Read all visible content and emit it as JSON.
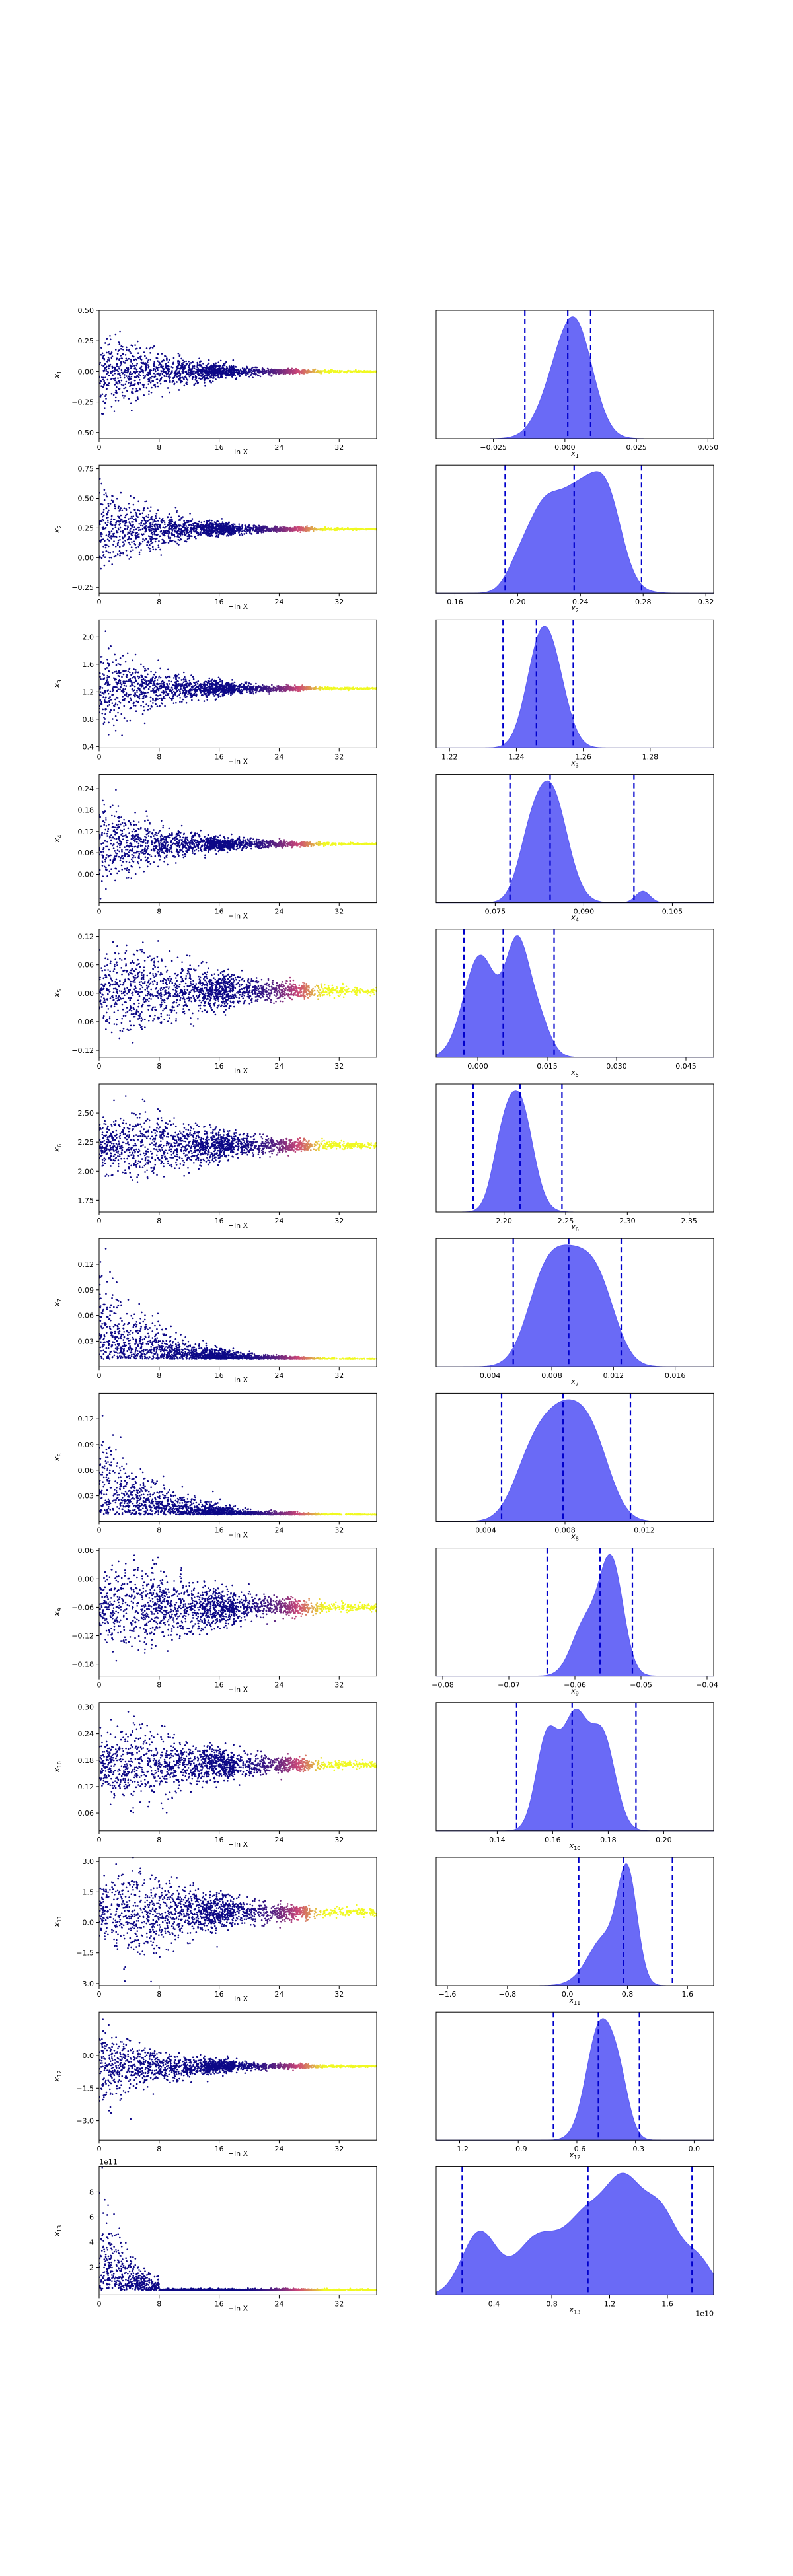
{
  "figure": {
    "background": "#ffffff"
  },
  "colors": {
    "hist_fill": "#5a5af5",
    "quantile_line": "#0000cc",
    "scatter_low": "#0d0887",
    "scatter_mid": "#cc4778",
    "scatter_high": "#f0f921"
  },
  "chart_data": [
    {
      "type": "scatter",
      "param": "x1",
      "xlabel": "−ln X",
      "ylabel_base": "x",
      "ylabel_sub": "1",
      "xlim": [
        0,
        37
      ],
      "xticks": [
        0,
        8,
        16,
        24,
        32
      ],
      "ylim": [
        -0.55,
        0.5
      ],
      "yticks": [
        -0.5,
        -0.25,
        0,
        0.25,
        0.5
      ],
      "ytick_labels": [
        "−0.50",
        "−0.25",
        "0.00",
        "0.25",
        "0.50"
      ],
      "center": 0.0,
      "spread": 0.18,
      "shape": "decay",
      "seed": 11
    },
    {
      "type": "area",
      "param": "x1",
      "xlabel_base": "x",
      "xlabel_sub": "1",
      "xlim": [
        -0.045,
        0.052
      ],
      "xticks": [
        -0.025,
        0,
        0.025,
        0.05
      ],
      "xtick_labels": [
        "−0.025",
        "0.000",
        "0.025",
        "0.050"
      ],
      "quantiles": [
        -0.014,
        0.001,
        0.009
      ],
      "density_peaks": [
        [
          0.004,
          0.006,
          1.0
        ],
        [
          -0.004,
          0.006,
          0.35
        ]
      ]
    },
    {
      "type": "scatter",
      "param": "x2",
      "xlabel": "−ln X",
      "ylabel_base": "x",
      "ylabel_sub": "2",
      "xlim": [
        0,
        37
      ],
      "xticks": [
        0,
        8,
        16,
        24,
        32
      ],
      "ylim": [
        -0.3,
        0.78
      ],
      "yticks": [
        -0.25,
        0,
        0.25,
        0.5,
        0.75
      ],
      "ytick_labels": [
        "−0.25",
        "0.00",
        "0.25",
        "0.50",
        "0.75"
      ],
      "center": 0.24,
      "spread": 0.17,
      "shape": "decay",
      "seed": 22
    },
    {
      "type": "area",
      "param": "x2",
      "xlabel_base": "x",
      "xlabel_sub": "2",
      "xlim": [
        0.148,
        0.325
      ],
      "xticks": [
        0.16,
        0.2,
        0.24,
        0.28,
        0.32
      ],
      "xtick_labels": [
        "0.16",
        "0.20",
        "0.24",
        "0.28",
        "0.32"
      ],
      "quantiles": [
        0.192,
        0.236,
        0.279
      ],
      "density_peaks": [
        [
          0.24,
          0.016,
          1.0
        ],
        [
          0.215,
          0.01,
          0.55
        ],
        [
          0.258,
          0.009,
          0.5
        ],
        [
          0.2,
          0.008,
          0.2
        ]
      ]
    },
    {
      "type": "scatter",
      "param": "x3",
      "xlabel": "−ln X",
      "ylabel_base": "x",
      "ylabel_sub": "3",
      "xlim": [
        0,
        37
      ],
      "xticks": [
        0,
        8,
        16,
        24,
        32
      ],
      "ylim": [
        0.38,
        2.25
      ],
      "yticks": [
        0.4,
        0.8,
        1.2,
        1.6,
        2.0
      ],
      "ytick_labels": [
        "0.4",
        "0.8",
        "1.2",
        "1.6",
        "2.0"
      ],
      "center": 1.25,
      "spread": 0.32,
      "shape": "decay",
      "seed": 33
    },
    {
      "type": "area",
      "param": "x3",
      "xlabel_base": "x",
      "xlabel_sub": "3",
      "xlim": [
        1.216,
        1.299
      ],
      "xticks": [
        1.22,
        1.24,
        1.26,
        1.28
      ],
      "xtick_labels": [
        "1.22",
        "1.24",
        "1.26",
        "1.28"
      ],
      "quantiles": [
        1.236,
        1.246,
        1.257
      ],
      "density_peaks": [
        [
          1.247,
          0.0042,
          1.0
        ],
        [
          1.252,
          0.004,
          0.5
        ]
      ]
    },
    {
      "type": "scatter",
      "param": "x4",
      "xlabel": "−ln X",
      "ylabel_base": "x",
      "ylabel_sub": "4",
      "xlim": [
        0,
        37
      ],
      "xticks": [
        0,
        8,
        16,
        24,
        32
      ],
      "ylim": [
        -0.08,
        0.28
      ],
      "yticks": [
        0,
        0.06,
        0.12,
        0.18,
        0.24
      ],
      "ytick_labels": [
        "0.00",
        "0.06",
        "0.12",
        "0.18",
        "0.24"
      ],
      "center": 0.085,
      "spread": 0.06,
      "shape": "decay",
      "seed": 44
    },
    {
      "type": "area",
      "param": "x4",
      "xlabel_base": "x",
      "xlabel_sub": "4",
      "xlim": [
        0.065,
        0.112
      ],
      "xticks": [
        0.075,
        0.09,
        0.105
      ],
      "xtick_labels": [
        "0.075",
        "0.090",
        "0.105"
      ],
      "quantiles": [
        0.0775,
        0.0843,
        0.0985
      ],
      "density_peaks": [
        [
          0.0843,
          0.0028,
          1.0
        ],
        [
          0.0805,
          0.002,
          0.3
        ],
        [
          0.1,
          0.0012,
          0.1
        ]
      ]
    },
    {
      "type": "scatter",
      "param": "x5",
      "xlabel": "−ln X",
      "ylabel_base": "x",
      "ylabel_sub": "5",
      "xlim": [
        0,
        37
      ],
      "xticks": [
        0,
        8,
        16,
        24,
        32
      ],
      "ylim": [
        -0.135,
        0.135
      ],
      "yticks": [
        -0.12,
        -0.06,
        0,
        0.06,
        0.12
      ],
      "ytick_labels": [
        "−0.12",
        "−0.06",
        "0.00",
        "0.06",
        "0.12"
      ],
      "center": 0.005,
      "spread": 0.05,
      "shape": "hump",
      "seed": 55
    },
    {
      "type": "area",
      "param": "x5",
      "xlabel_base": "x",
      "xlabel_sub": "5",
      "xlim": [
        -0.009,
        0.051
      ],
      "xticks": [
        0,
        0.015,
        0.03,
        0.045
      ],
      "xtick_labels": [
        "0.000",
        "0.015",
        "0.030",
        "0.045"
      ],
      "quantiles": [
        -0.003,
        0.0055,
        0.0165
      ],
      "density_peaks": [
        [
          0.0005,
          0.0035,
          0.95
        ],
        [
          0.0085,
          0.0025,
          1.0
        ],
        [
          0.013,
          0.0025,
          0.35
        ]
      ]
    },
    {
      "type": "scatter",
      "param": "x6",
      "xlabel": "−ln X",
      "ylabel_base": "x",
      "ylabel_sub": "6",
      "xlim": [
        0,
        37
      ],
      "xticks": [
        0,
        8,
        16,
        24,
        32
      ],
      "ylim": [
        1.65,
        2.75
      ],
      "yticks": [
        1.75,
        2.0,
        2.25,
        2.5
      ],
      "ytick_labels": [
        "1.75",
        "2.00",
        "2.25",
        "2.50"
      ],
      "center": 2.22,
      "spread": 0.16,
      "shape": "hump",
      "seed": 66
    },
    {
      "type": "area",
      "param": "x6",
      "xlabel_base": "x",
      "xlabel_sub": "6",
      "xlim": [
        2.145,
        2.37
      ],
      "xticks": [
        2.2,
        2.25,
        2.3,
        2.35
      ],
      "xtick_labels": [
        "2.20",
        "2.25",
        "2.30",
        "2.35"
      ],
      "quantiles": [
        2.175,
        2.213,
        2.247
      ],
      "density_peaks": [
        [
          2.212,
          0.011,
          1.0
        ],
        [
          2.197,
          0.008,
          0.35
        ]
      ]
    },
    {
      "type": "scatter",
      "param": "x7",
      "xlabel": "−ln X",
      "ylabel_base": "x",
      "ylabel_sub": "7",
      "xlim": [
        0,
        37
      ],
      "xticks": [
        0,
        8,
        16,
        24,
        32
      ],
      "ylim": [
        0,
        0.15
      ],
      "yticks": [
        0.03,
        0.06,
        0.09,
        0.12
      ],
      "ytick_labels": [
        "0.03",
        "0.06",
        "0.09",
        "0.12"
      ],
      "center": 0.009,
      "spread": 0.05,
      "shape": "right",
      "seed": 77
    },
    {
      "type": "area",
      "param": "x7",
      "xlabel_base": "x",
      "xlabel_sub": "7",
      "xlim": [
        0.0005,
        0.0185
      ],
      "xticks": [
        0.004,
        0.008,
        0.012,
        0.016
      ],
      "xtick_labels": [
        "0.004",
        "0.008",
        "0.012",
        "0.016"
      ],
      "quantiles": [
        0.0055,
        0.0091,
        0.0125
      ],
      "density_peaks": [
        [
          0.0092,
          0.0016,
          1.0
        ],
        [
          0.0073,
          0.0011,
          0.45
        ],
        [
          0.0112,
          0.0011,
          0.45
        ]
      ]
    },
    {
      "type": "scatter",
      "param": "x8",
      "xlabel": "−ln X",
      "ylabel_base": "x",
      "ylabel_sub": "8",
      "xlim": [
        0,
        37
      ],
      "xticks": [
        0,
        8,
        16,
        24,
        32
      ],
      "ylim": [
        0,
        0.15
      ],
      "yticks": [
        0.03,
        0.06,
        0.09,
        0.12
      ],
      "ytick_labels": [
        "0.03",
        "0.06",
        "0.09",
        "0.12"
      ],
      "center": 0.008,
      "spread": 0.05,
      "shape": "right",
      "seed": 88
    },
    {
      "type": "area",
      "param": "x8",
      "xlabel_base": "x",
      "xlabel_sub": "8",
      "xlim": [
        0.0015,
        0.0155
      ],
      "xticks": [
        0.004,
        0.008,
        0.012
      ],
      "xtick_labels": [
        "0.004",
        "0.008",
        "0.012"
      ],
      "quantiles": [
        0.0048,
        0.0079,
        0.0113
      ],
      "density_peaks": [
        [
          0.0079,
          0.0012,
          1.0
        ],
        [
          0.0062,
          0.0009,
          0.4
        ],
        [
          0.0095,
          0.0009,
          0.5
        ]
      ]
    },
    {
      "type": "scatter",
      "param": "x9",
      "xlabel": "−ln X",
      "ylabel_base": "x",
      "ylabel_sub": "9",
      "xlim": [
        0,
        37
      ],
      "xticks": [
        0,
        8,
        16,
        24,
        32
      ],
      "ylim": [
        -0.205,
        0.065
      ],
      "yticks": [
        -0.18,
        -0.12,
        -0.06,
        0,
        0.06
      ],
      "ytick_labels": [
        "−0.18",
        "−0.12",
        "−0.06",
        "0.00",
        "0.06"
      ],
      "center": -0.06,
      "spread": 0.05,
      "shape": "hump",
      "seed": 99
    },
    {
      "type": "area",
      "param": "x9",
      "xlabel_base": "x",
      "xlabel_sub": "9",
      "xlim": [
        -0.081,
        -0.039
      ],
      "xticks": [
        -0.08,
        -0.07,
        -0.06,
        -0.05,
        -0.04
      ],
      "xtick_labels": [
        "−0.08",
        "−0.07",
        "−0.06",
        "−0.05",
        "−0.04"
      ],
      "quantiles": [
        -0.0642,
        -0.0562,
        -0.0513
      ],
      "density_peaks": [
        [
          -0.0545,
          0.0018,
          1.0
        ],
        [
          -0.0585,
          0.002,
          0.45
        ]
      ]
    },
    {
      "type": "scatter",
      "param": "x10",
      "xlabel": "−ln X",
      "ylabel_base": "x",
      "ylabel_sub": "10",
      "xlim": [
        0,
        37
      ],
      "xticks": [
        0,
        8,
        16,
        24,
        32
      ],
      "ylim": [
        0.02,
        0.31
      ],
      "yticks": [
        0.06,
        0.12,
        0.18,
        0.24,
        0.3
      ],
      "ytick_labels": [
        "0.06",
        "0.12",
        "0.18",
        "0.24",
        "0.30"
      ],
      "center": 0.17,
      "spread": 0.045,
      "shape": "hump",
      "seed": 110
    },
    {
      "type": "area",
      "param": "x10",
      "xlabel_base": "x",
      "xlabel_sub": "10",
      "xlim": [
        0.118,
        0.218
      ],
      "xticks": [
        0.14,
        0.16,
        0.18,
        0.2
      ],
      "xtick_labels": [
        "0.14",
        "0.16",
        "0.18",
        "0.20"
      ],
      "quantiles": [
        0.147,
        0.167,
        0.19
      ],
      "density_peaks": [
        [
          0.168,
          0.0045,
          1.0
        ],
        [
          0.158,
          0.004,
          0.85
        ],
        [
          0.178,
          0.0045,
          0.85
        ]
      ]
    },
    {
      "type": "scatter",
      "param": "x11",
      "xlabel": "−ln X",
      "ylabel_base": "x",
      "ylabel_sub": "11",
      "xlim": [
        0,
        37
      ],
      "xticks": [
        0,
        8,
        16,
        24,
        32
      ],
      "ylim": [
        -3.1,
        3.2
      ],
      "yticks": [
        -3,
        -1.5,
        0,
        1.5,
        3
      ],
      "ytick_labels": [
        "−3.0",
        "−1.5",
        "0.0",
        "1.5",
        "3.0"
      ],
      "center": 0.5,
      "spread": 1.1,
      "shape": "hump",
      "seed": 121
    },
    {
      "type": "area",
      "param": "x11",
      "xlabel_base": "x",
      "xlabel_sub": "11",
      "xlim": [
        -1.75,
        1.95
      ],
      "xticks": [
        -1.6,
        -0.8,
        0,
        0.8,
        1.6
      ],
      "xtick_labels": [
        "−1.6",
        "−0.8",
        "0.0",
        "0.8",
        "1.6"
      ],
      "quantiles": [
        0.15,
        0.75,
        1.4
      ],
      "density_peaks": [
        [
          0.8,
          0.13,
          1.0
        ],
        [
          0.5,
          0.18,
          0.35
        ],
        [
          0.3,
          0.2,
          0.1
        ]
      ]
    },
    {
      "type": "scatter",
      "param": "x12",
      "xlabel": "−ln X",
      "ylabel_base": "x",
      "ylabel_sub": "12",
      "xlim": [
        0,
        37
      ],
      "xticks": [
        0,
        8,
        16,
        24,
        32
      ],
      "ylim": [
        -3.9,
        2.0
      ],
      "yticks": [
        -3,
        -1.5,
        0
      ],
      "ytick_labels": [
        "−3.0",
        "−1.5",
        "0.0"
      ],
      "center": -0.5,
      "spread": 0.9,
      "shape": "decay",
      "seed": 132
    },
    {
      "type": "area",
      "param": "x12",
      "xlabel_base": "x",
      "xlabel_sub": "12",
      "xlim": [
        -1.32,
        0.1
      ],
      "xticks": [
        -1.2,
        -0.9,
        -0.6,
        -0.3,
        0
      ],
      "xtick_labels": [
        "−1.2",
        "−0.9",
        "−0.6",
        "−0.3",
        "0.0"
      ],
      "quantiles": [
        -0.72,
        -0.49,
        -0.28
      ],
      "density_peaks": [
        [
          -0.48,
          0.07,
          1.0
        ],
        [
          -0.38,
          0.05,
          0.35
        ]
      ]
    },
    {
      "type": "scatter",
      "param": "x13",
      "xlabel": "−ln X",
      "ylabel_base": "x",
      "ylabel_sub": "13",
      "offset_text": "1e11",
      "xlim": [
        0,
        37
      ],
      "xticks": [
        0,
        8,
        16,
        24,
        32
      ],
      "ylim": [
        -0.2,
        10.0
      ],
      "yticks": [
        2,
        4,
        6,
        8
      ],
      "ytick_labels": [
        "2",
        "4",
        "6",
        "8"
      ],
      "center": 0.15,
      "spread": 0.2,
      "shape": "spike",
      "seed": 143
    },
    {
      "type": "area",
      "param": "x13",
      "xlabel_base": "x",
      "xlabel_sub": "13",
      "offset_text": "1e10",
      "xlim": [
        0.0,
        1.92
      ],
      "xticks": [
        0.4,
        0.8,
        1.2,
        1.6
      ],
      "xtick_labels": [
        "0.4",
        "0.8",
        "1.2",
        "1.6"
      ],
      "quantiles": [
        0.18,
        1.05,
        1.77
      ],
      "density_peaks": [
        [
          0.3,
          0.12,
          0.5
        ],
        [
          0.7,
          0.15,
          0.45
        ],
        [
          1.05,
          0.15,
          0.62
        ],
        [
          1.3,
          0.12,
          0.72
        ],
        [
          1.55,
          0.13,
          0.66
        ],
        [
          1.82,
          0.1,
          0.25
        ]
      ]
    }
  ]
}
